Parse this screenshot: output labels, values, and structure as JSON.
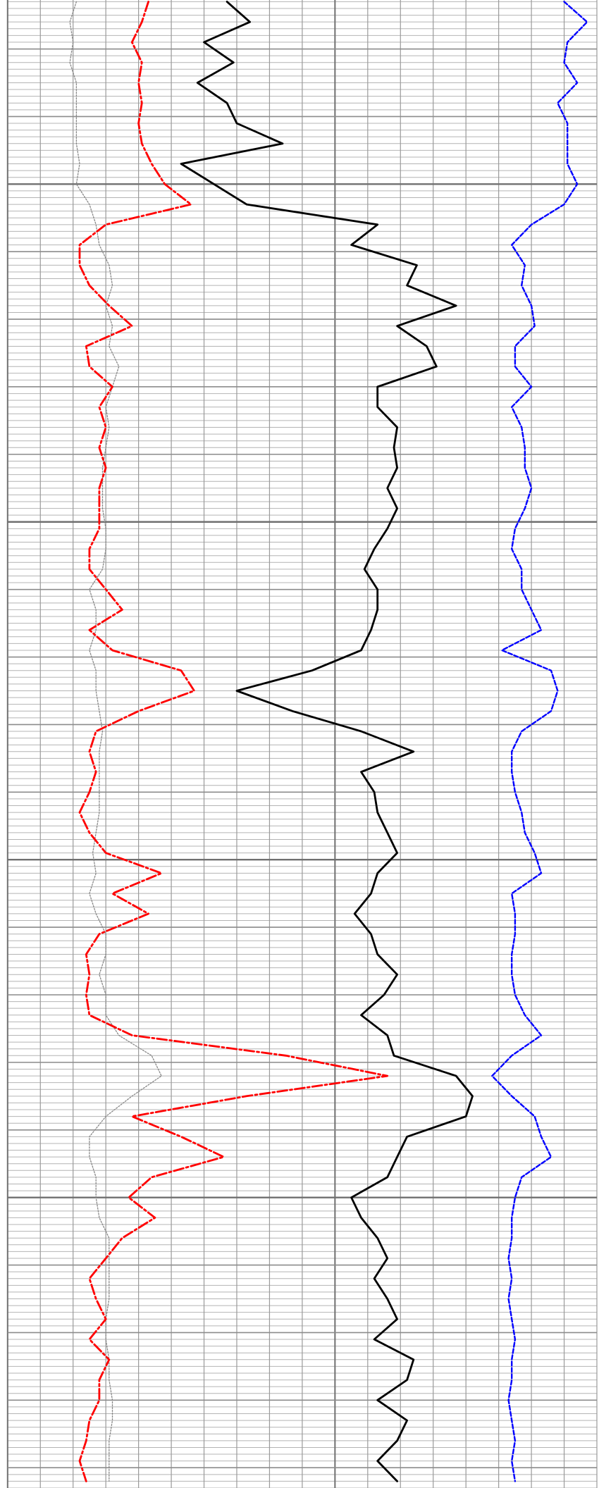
{
  "chart_data": {
    "type": "line",
    "orientation": "vertical",
    "xlim": [
      0,
      180
    ],
    "xticks": [
      0,
      10,
      20,
      30,
      40,
      50,
      60,
      70,
      80,
      90,
      100,
      110,
      120,
      130,
      140,
      150,
      160,
      170,
      180
    ],
    "ylim": [
      -27.25,
      193
    ],
    "yticks": [
      -20,
      -10,
      0,
      10,
      20,
      30,
      40,
      50,
      60,
      70,
      80,
      90,
      100,
      110,
      120,
      130,
      140,
      150,
      160,
      170,
      180,
      190
    ],
    "minor_divisions": 10,
    "grid": true,
    "depth": [
      -27,
      -24,
      -21,
      -18,
      -15,
      -12,
      -9,
      -6,
      -3,
      0,
      3,
      6,
      9,
      12,
      15,
      18,
      21,
      24,
      27,
      30,
      33,
      36,
      39,
      42,
      45,
      48,
      51,
      54,
      57,
      60,
      63,
      66,
      69,
      72,
      75,
      78,
      81,
      84,
      87,
      90,
      93,
      96,
      99,
      102,
      105,
      108,
      111,
      114,
      117,
      120,
      123,
      126,
      129,
      132,
      135,
      138,
      141,
      144,
      147,
      150,
      153,
      156,
      159,
      162,
      165,
      168,
      171,
      174,
      177,
      180,
      183,
      186,
      189,
      192
    ],
    "series": [
      {
        "color": "#888888",
        "style": "dotted",
        "values": [
          21,
          19,
          20,
          19,
          21,
          21,
          21,
          21,
          22,
          21,
          25,
          27,
          28,
          31,
          32,
          30,
          32,
          31,
          34,
          32,
          30,
          31,
          30,
          29,
          29,
          29,
          30,
          30,
          29,
          25,
          27,
          27,
          25,
          27,
          27,
          28,
          29,
          28,
          28,
          28,
          28,
          27,
          26,
          27,
          25,
          27,
          30,
          30,
          28,
          30,
          30,
          34,
          44,
          47,
          38,
          30,
          25,
          25,
          27,
          27,
          28,
          31,
          31,
          31,
          31,
          30,
          30,
          31,
          31,
          32,
          32,
          31,
          31,
          31
        ]
      },
      {
        "color": "#ff0000",
        "style": "dashdot",
        "values": [
          43,
          41,
          38,
          41,
          40,
          41,
          40,
          41,
          44,
          48,
          56,
          30,
          22,
          22,
          25,
          31,
          38,
          24,
          25,
          32,
          28,
          30,
          28,
          30,
          28,
          28,
          28,
          25,
          25,
          30,
          35,
          25,
          32,
          53,
          57,
          40,
          27,
          25,
          27,
          25,
          22,
          25,
          30,
          47,
          32,
          43,
          28,
          24,
          25,
          24,
          25,
          38,
          85,
          116,
          73,
          38,
          53,
          66,
          44,
          37,
          45,
          35,
          30,
          25,
          27,
          30,
          25,
          31,
          28,
          28,
          25,
          24,
          22,
          24
        ]
      },
      {
        "color": "#000000",
        "style": "solid",
        "values": [
          67,
          74,
          60,
          69,
          58,
          67,
          70,
          84,
          53,
          63,
          73,
          113,
          105,
          125,
          122,
          137,
          119,
          128,
          131,
          113,
          113,
          119,
          118,
          119,
          116,
          119,
          116,
          112,
          109,
          113,
          113,
          111,
          108,
          93,
          70,
          87,
          108,
          124,
          108,
          112,
          113,
          116,
          119,
          113,
          111,
          106,
          111,
          113,
          119,
          115,
          108,
          116,
          118,
          137,
          142,
          140,
          122,
          119,
          116,
          105,
          108,
          113,
          116,
          112,
          116,
          119,
          112,
          124,
          122,
          113,
          122,
          119,
          113,
          119
        ]
      },
      {
        "color": "#0000ff",
        "style": "dashed",
        "values": [
          170,
          177,
          171,
          170,
          174,
          168,
          171,
          171,
          171,
          174,
          170,
          160,
          154,
          158,
          157,
          160,
          161,
          155,
          155,
          160,
          154,
          157,
          158,
          158,
          160,
          158,
          155,
          154,
          157,
          157,
          160,
          163,
          151,
          166,
          168,
          166,
          157,
          154,
          154,
          155,
          157,
          158,
          161,
          163,
          154,
          155,
          155,
          154,
          154,
          155,
          158,
          163,
          154,
          148,
          154,
          161,
          163,
          166,
          157,
          155,
          154,
          154,
          153,
          154,
          153,
          154,
          155,
          154,
          154,
          153,
          154,
          155,
          154,
          155
        ]
      }
    ]
  }
}
